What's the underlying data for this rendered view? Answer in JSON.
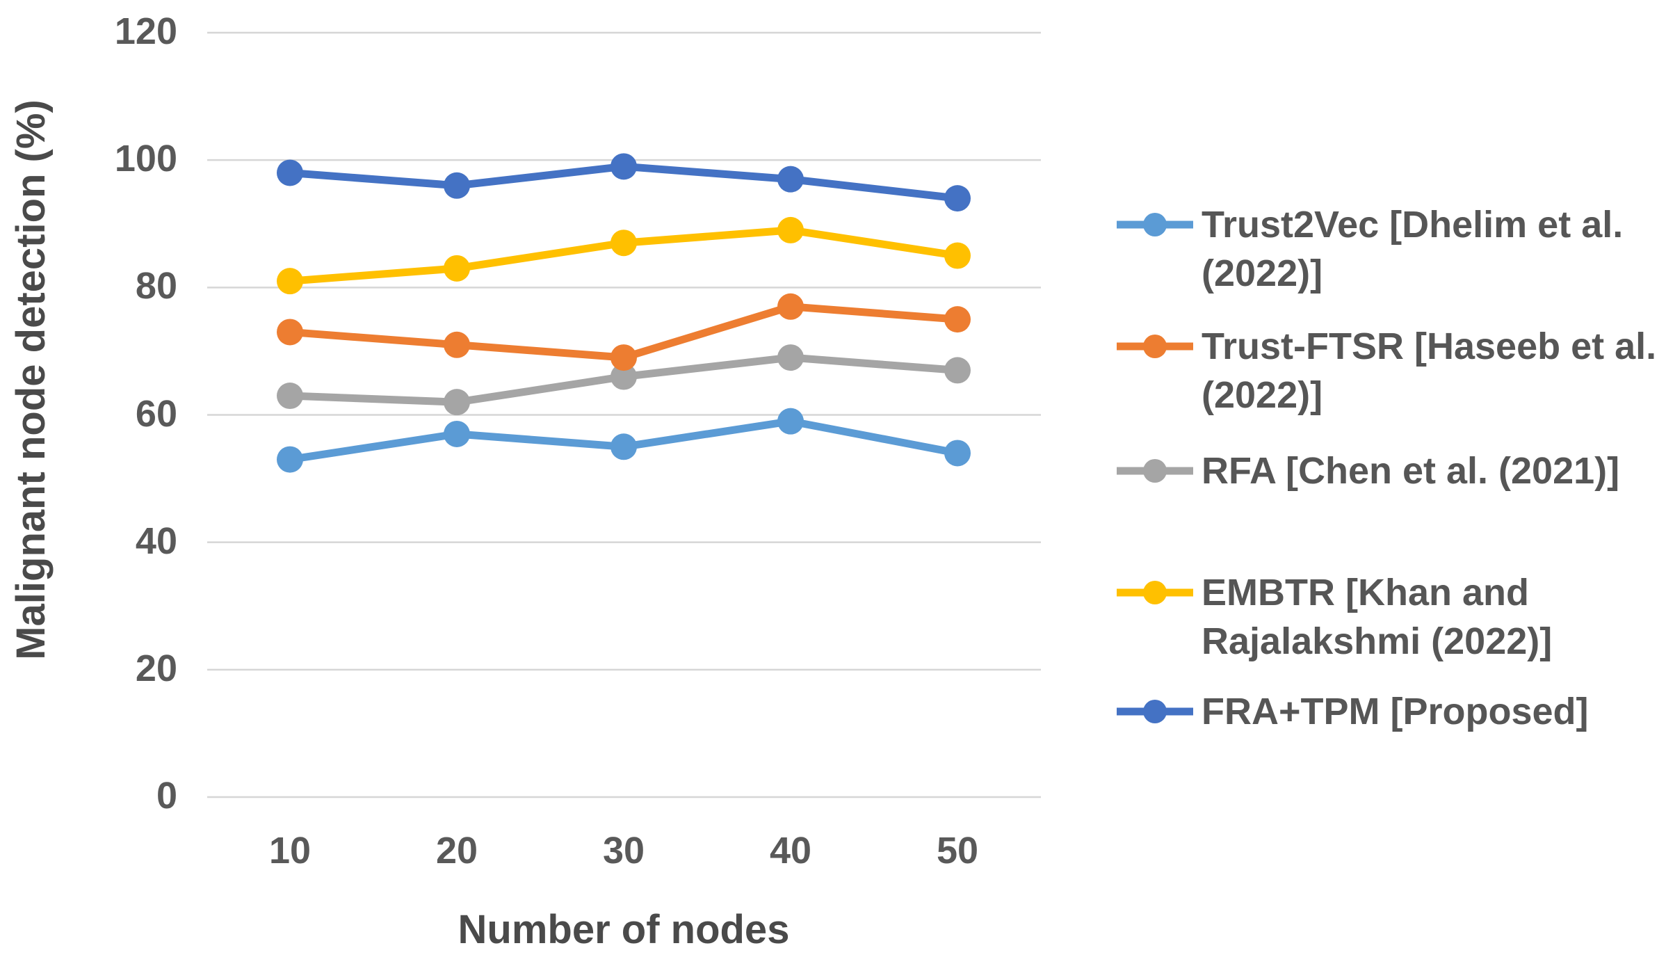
{
  "chart_data": {
    "type": "line",
    "title": "",
    "xlabel": "Number of nodes",
    "ylabel": "Malignant node detection (%)",
    "categories": [
      10,
      20,
      30,
      40,
      50
    ],
    "y_axis": {
      "min": 0,
      "max": 120,
      "step": 20,
      "ticks": [
        0,
        20,
        40,
        60,
        80,
        100,
        120
      ]
    },
    "grid": true,
    "legend_position": "right",
    "marker": "circle",
    "series": [
      {
        "name": "Trust2Vec [Dhelim et al. (2022)]",
        "color": "#5B9BD5",
        "values": [
          53,
          57,
          55,
          59,
          54
        ]
      },
      {
        "name": "Trust-FTSR [Haseeb et al. (2022)]",
        "color": "#ED7D31",
        "values": [
          73,
          71,
          69,
          77,
          75
        ]
      },
      {
        "name": "RFA [Chen et al. (2021)]",
        "color": "#A5A5A5",
        "values": [
          63,
          62,
          66,
          69,
          67
        ]
      },
      {
        "name": "EMBTR [Khan and Rajalakshmi (2022)]",
        "color": "#FFC000",
        "values": [
          81,
          83,
          87,
          89,
          85
        ]
      },
      {
        "name": "FRA+TPM [Proposed]",
        "color": "#4472C4",
        "values": [
          98,
          96,
          99,
          97,
          94
        ]
      }
    ],
    "gridline_color": "#D6D6D6"
  }
}
